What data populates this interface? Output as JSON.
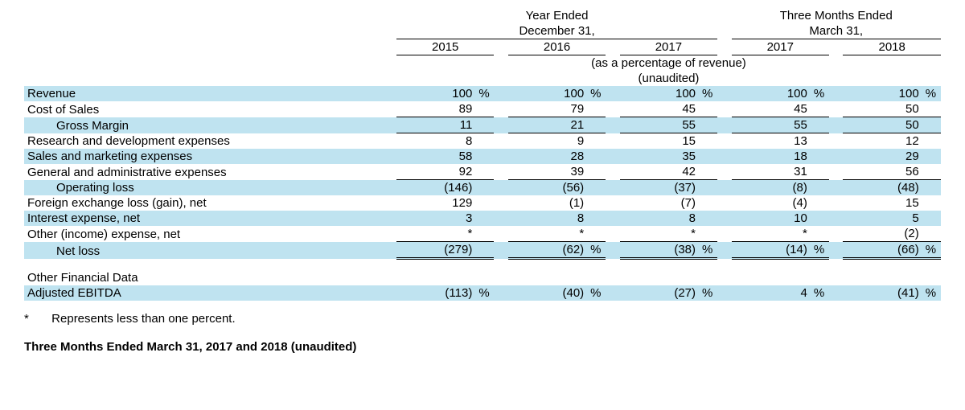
{
  "headers": {
    "group1_line1": "Year Ended",
    "group1_line2": "December 31,",
    "group2_line1": "Three Months Ended",
    "group2_line2": "March 31,",
    "years": [
      "2015",
      "2016",
      "2017",
      "2017",
      "2018"
    ],
    "subcaption1": "(as a percentage of revenue)",
    "subcaption2": "(unaudited)"
  },
  "rows": [
    {
      "label": "Revenue",
      "shade": true,
      "indent": 0,
      "vals": [
        "100",
        "100",
        "100",
        "100",
        "100"
      ],
      "suffix": "%",
      "underline": false
    },
    {
      "label": "Cost of Sales",
      "shade": false,
      "indent": 0,
      "vals": [
        "89",
        "79",
        "45",
        "45",
        "50"
      ],
      "suffix": "",
      "underline": true
    },
    {
      "label": "Gross Margin",
      "shade": true,
      "indent": 1,
      "vals": [
        "11",
        "21",
        "55",
        "55",
        "50"
      ],
      "suffix": "",
      "underline": true
    },
    {
      "label": "Research and development expenses",
      "shade": false,
      "indent": 0,
      "vals": [
        "8",
        "9",
        "15",
        "13",
        "12"
      ],
      "suffix": "",
      "underline": false
    },
    {
      "label": "Sales and marketing expenses",
      "shade": true,
      "indent": 0,
      "vals": [
        "58",
        "28",
        "35",
        "18",
        "29"
      ],
      "suffix": "",
      "underline": false
    },
    {
      "label": "General and administrative expenses",
      "shade": false,
      "indent": 0,
      "vals": [
        "92",
        "39",
        "42",
        "31",
        "56"
      ],
      "suffix": "",
      "underline": true
    },
    {
      "label": "Operating loss",
      "shade": true,
      "indent": 1,
      "vals": [
        "(146)",
        "(56)",
        "(37)",
        "(8)",
        "(48)"
      ],
      "suffix": "",
      "underline": false
    },
    {
      "label": "Foreign exchange loss (gain), net",
      "shade": false,
      "indent": 0,
      "vals": [
        "129",
        "(1)",
        "(7)",
        "(4)",
        "15"
      ],
      "suffix": "",
      "underline": false
    },
    {
      "label": "Interest expense, net",
      "shade": true,
      "indent": 0,
      "vals": [
        "3",
        "8",
        "8",
        "10",
        "5"
      ],
      "suffix": "",
      "underline": false
    },
    {
      "label": "Other (income) expense, net",
      "shade": false,
      "indent": 0,
      "vals": [
        "*",
        "*",
        "*",
        "*",
        "(2)"
      ],
      "suffix": "",
      "underline": true
    },
    {
      "label": "Net loss",
      "shade": true,
      "indent": 1,
      "vals": [
        "(279)",
        "(62)",
        "(38)",
        "(14)",
        "(66)"
      ],
      "suffix": "%",
      "underline": "double"
    }
  ],
  "section2": {
    "title": "Other Financial Data",
    "row": {
      "label": "Adjusted EBITDA",
      "shade": true,
      "vals": [
        "(113)",
        "(40)",
        "(27)",
        "4",
        "(41)"
      ],
      "suffix": "%"
    }
  },
  "footnote": {
    "star": "*",
    "text": "Represents less than one percent."
  },
  "bottom_heading": "Three Months Ended March 31, 2017 and 2018 (unaudited)",
  "style": {
    "shade_color": "#bfe3f0",
    "font_family": "Arial",
    "font_size_pt": 11
  }
}
